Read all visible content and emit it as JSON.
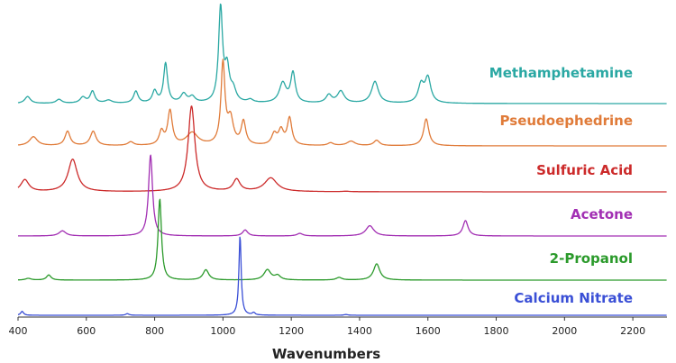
{
  "chart_data": {
    "type": "line",
    "title": "",
    "xlabel": "Wavenumbers",
    "ylabel": "",
    "xlim": [
      400,
      2300
    ],
    "xticks": [
      400,
      600,
      800,
      1000,
      1200,
      1400,
      1600,
      1800,
      2000,
      2200
    ],
    "xtick_labels": [
      "400",
      "600",
      "800",
      "1000",
      "1200",
      "1400",
      "1600",
      "1800",
      "2000",
      "2200"
    ],
    "legend": "labels placed next to each trace on the right",
    "stacked_offset": true,
    "series": [
      {
        "name": "Methamphetamine",
        "color": "#2aa8a3",
        "peaks": [
          {
            "x": 428,
            "y": 0.07,
            "w": 10
          },
          {
            "x": 520,
            "y": 0.04,
            "w": 10
          },
          {
            "x": 590,
            "y": 0.06,
            "w": 10
          },
          {
            "x": 618,
            "y": 0.12,
            "w": 8
          },
          {
            "x": 665,
            "y": 0.03,
            "w": 12
          },
          {
            "x": 745,
            "y": 0.12,
            "w": 8
          },
          {
            "x": 800,
            "y": 0.12,
            "w": 8
          },
          {
            "x": 832,
            "y": 0.4,
            "w": 7
          },
          {
            "x": 885,
            "y": 0.09,
            "w": 10
          },
          {
            "x": 910,
            "y": 0.06,
            "w": 10
          },
          {
            "x": 993,
            "y": 0.95,
            "w": 7
          },
          {
            "x": 1012,
            "y": 0.32,
            "w": 8
          },
          {
            "x": 1030,
            "y": 0.12,
            "w": 10
          },
          {
            "x": 1080,
            "y": 0.03,
            "w": 10
          },
          {
            "x": 1175,
            "y": 0.2,
            "w": 12
          },
          {
            "x": 1205,
            "y": 0.3,
            "w": 8
          },
          {
            "x": 1310,
            "y": 0.08,
            "w": 10
          },
          {
            "x": 1345,
            "y": 0.12,
            "w": 12
          },
          {
            "x": 1445,
            "y": 0.22,
            "w": 12
          },
          {
            "x": 1580,
            "y": 0.18,
            "w": 10
          },
          {
            "x": 1600,
            "y": 0.25,
            "w": 10
          }
        ]
      },
      {
        "name": "Pseudoephedrine",
        "color": "#e07b39",
        "peaks": [
          {
            "x": 445,
            "y": 0.1,
            "w": 14
          },
          {
            "x": 545,
            "y": 0.16,
            "w": 9
          },
          {
            "x": 620,
            "y": 0.16,
            "w": 10
          },
          {
            "x": 730,
            "y": 0.04,
            "w": 10
          },
          {
            "x": 820,
            "y": 0.15,
            "w": 8
          },
          {
            "x": 845,
            "y": 0.38,
            "w": 8
          },
          {
            "x": 910,
            "y": 0.14,
            "w": 20
          },
          {
            "x": 1000,
            "y": 0.9,
            "w": 7
          },
          {
            "x": 1022,
            "y": 0.28,
            "w": 10
          },
          {
            "x": 1060,
            "y": 0.26,
            "w": 8
          },
          {
            "x": 1150,
            "y": 0.12,
            "w": 9
          },
          {
            "x": 1170,
            "y": 0.16,
            "w": 9
          },
          {
            "x": 1195,
            "y": 0.3,
            "w": 8
          },
          {
            "x": 1315,
            "y": 0.03,
            "w": 10
          },
          {
            "x": 1375,
            "y": 0.05,
            "w": 14
          },
          {
            "x": 1450,
            "y": 0.06,
            "w": 10
          },
          {
            "x": 1595,
            "y": 0.3,
            "w": 9
          }
        ]
      },
      {
        "name": "Sulfuric Acid",
        "color": "#cc2a2a",
        "peaks": [
          {
            "x": 420,
            "y": 0.14,
            "w": 14
          },
          {
            "x": 560,
            "y": 0.38,
            "w": 16
          },
          {
            "x": 908,
            "y": 1.0,
            "w": 12
          },
          {
            "x": 1040,
            "y": 0.14,
            "w": 12
          },
          {
            "x": 1140,
            "y": 0.16,
            "w": 22
          },
          {
            "x": 1360,
            "y": 0.005,
            "w": 12
          }
        ]
      },
      {
        "name": "Acetone",
        "color": "#a22fb3",
        "peaks": [
          {
            "x": 530,
            "y": 0.06,
            "w": 12
          },
          {
            "x": 788,
            "y": 0.95,
            "w": 7
          },
          {
            "x": 1065,
            "y": 0.07,
            "w": 9
          },
          {
            "x": 1225,
            "y": 0.03,
            "w": 10
          },
          {
            "x": 1430,
            "y": 0.12,
            "w": 14
          },
          {
            "x": 1710,
            "y": 0.18,
            "w": 9
          }
        ]
      },
      {
        "name": "2-Propanol",
        "color": "#2b9a2b",
        "peaks": [
          {
            "x": 430,
            "y": 0.02,
            "w": 10
          },
          {
            "x": 490,
            "y": 0.06,
            "w": 8
          },
          {
            "x": 815,
            "y": 0.95,
            "w": 6
          },
          {
            "x": 950,
            "y": 0.12,
            "w": 10
          },
          {
            "x": 1130,
            "y": 0.12,
            "w": 12
          },
          {
            "x": 1160,
            "y": 0.05,
            "w": 10
          },
          {
            "x": 1340,
            "y": 0.03,
            "w": 10
          },
          {
            "x": 1450,
            "y": 0.19,
            "w": 11
          }
        ]
      },
      {
        "name": "Calcium Nitrate",
        "color": "#3a4fd6",
        "peaks": [
          {
            "x": 412,
            "y": 0.05,
            "w": 5
          },
          {
            "x": 720,
            "y": 0.02,
            "w": 6
          },
          {
            "x": 1050,
            "y": 1.0,
            "w": 4
          },
          {
            "x": 1090,
            "y": 0.03,
            "w": 5
          },
          {
            "x": 1360,
            "y": 0.01,
            "w": 6
          }
        ]
      }
    ]
  }
}
